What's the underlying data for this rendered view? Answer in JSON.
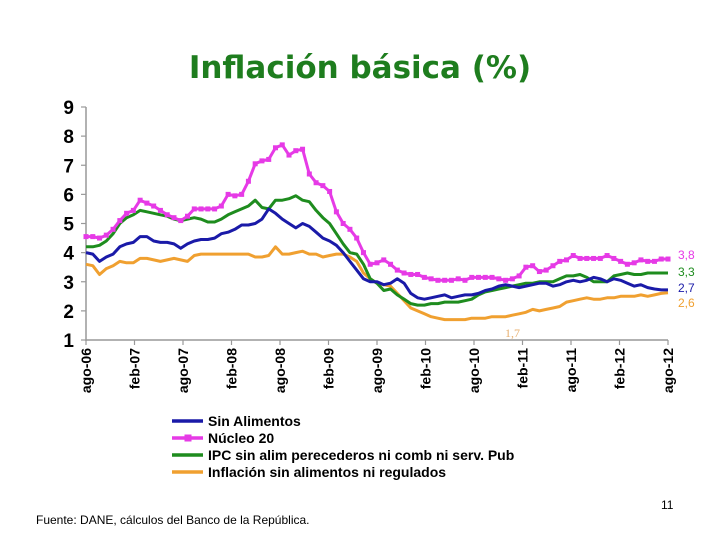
{
  "slide": {
    "title": "Inflación básica (%)",
    "source": "Fuente: DANE, cálculos del Banco de la República.",
    "page_number": "11"
  },
  "chart_data": {
    "type": "line",
    "ylim": [
      1,
      9
    ],
    "yticks": [
      1,
      2,
      3,
      4,
      5,
      6,
      7,
      8,
      9
    ],
    "x_start": "ago-06",
    "x_end": "ago-12",
    "x_tick_labels": [
      "ago-06",
      "feb-07",
      "ago-07",
      "feb-08",
      "ago-08",
      "feb-09",
      "ago-09",
      "feb-10",
      "ago-10",
      "feb-11",
      "ago-11",
      "feb-12",
      "ago-12"
    ],
    "legend_position": "bottom",
    "series": [
      {
        "name": "Sin Alimentos",
        "color": "#1a1aa8",
        "marker": false,
        "end_label": "2,7",
        "values": [
          4.0,
          3.95,
          3.7,
          3.85,
          3.95,
          4.2,
          4.3,
          4.35,
          4.55,
          4.55,
          4.4,
          4.35,
          4.35,
          4.3,
          4.15,
          4.3,
          4.4,
          4.45,
          4.45,
          4.5,
          4.65,
          4.7,
          4.8,
          4.95,
          4.95,
          5.0,
          5.15,
          5.5,
          5.35,
          5.15,
          5.0,
          4.85,
          5.0,
          4.9,
          4.7,
          4.5,
          4.4,
          4.25,
          4.0,
          3.7,
          3.4,
          3.1,
          3.0,
          3.0,
          2.9,
          2.95,
          3.1,
          2.95,
          2.6,
          2.45,
          2.4,
          2.45,
          2.5,
          2.55,
          2.45,
          2.5,
          2.55,
          2.55,
          2.6,
          2.7,
          2.75,
          2.85,
          2.9,
          2.85,
          2.8,
          2.85,
          2.9,
          2.95,
          2.95,
          2.85,
          2.9,
          3.0,
          3.05,
          3.0,
          3.05,
          3.15,
          3.1,
          3.0,
          3.1,
          3.05,
          2.95,
          2.85,
          2.9,
          2.8,
          2.75,
          2.72,
          2.72
        ]
      },
      {
        "name": "Núcleo 20",
        "color": "#e63ae6",
        "marker": true,
        "end_label": "3,8",
        "values": [
          4.55,
          4.55,
          4.5,
          4.6,
          4.8,
          5.1,
          5.35,
          5.45,
          5.8,
          5.7,
          5.6,
          5.45,
          5.3,
          5.2,
          5.1,
          5.25,
          5.5,
          5.5,
          5.5,
          5.5,
          5.6,
          6.0,
          5.95,
          6.0,
          6.45,
          7.05,
          7.15,
          7.2,
          7.6,
          7.7,
          7.35,
          7.5,
          7.55,
          6.7,
          6.4,
          6.3,
          6.1,
          5.4,
          5.0,
          4.8,
          4.5,
          4.0,
          3.6,
          3.65,
          3.75,
          3.6,
          3.4,
          3.3,
          3.25,
          3.25,
          3.15,
          3.1,
          3.05,
          3.05,
          3.05,
          3.1,
          3.05,
          3.15,
          3.15,
          3.15,
          3.15,
          3.1,
          3.05,
          3.1,
          3.2,
          3.5,
          3.55,
          3.35,
          3.4,
          3.55,
          3.7,
          3.75,
          3.9,
          3.8,
          3.8,
          3.8,
          3.8,
          3.9,
          3.8,
          3.7,
          3.6,
          3.65,
          3.75,
          3.7,
          3.7,
          3.78,
          3.78
        ]
      },
      {
        "name": "IPC sin alim perecederos ni comb ni serv. Pub",
        "color": "#1e8c1e",
        "marker": false,
        "end_label": "3,3",
        "values": [
          4.2,
          4.2,
          4.25,
          4.4,
          4.65,
          5.0,
          5.2,
          5.3,
          5.45,
          5.4,
          5.35,
          5.3,
          5.25,
          5.15,
          5.1,
          5.15,
          5.2,
          5.15,
          5.05,
          5.05,
          5.15,
          5.3,
          5.4,
          5.5,
          5.6,
          5.8,
          5.55,
          5.5,
          5.8,
          5.8,
          5.85,
          5.95,
          5.8,
          5.75,
          5.45,
          5.2,
          5.0,
          4.65,
          4.3,
          4.0,
          3.95,
          3.6,
          3.1,
          2.95,
          2.7,
          2.75,
          2.55,
          2.4,
          2.25,
          2.2,
          2.2,
          2.25,
          2.25,
          2.3,
          2.3,
          2.3,
          2.35,
          2.4,
          2.55,
          2.65,
          2.7,
          2.75,
          2.8,
          2.85,
          2.9,
          2.95,
          2.95,
          3.0,
          3.0,
          3.0,
          3.1,
          3.2,
          3.2,
          3.25,
          3.15,
          3.0,
          3.0,
          3.0,
          3.2,
          3.25,
          3.3,
          3.25,
          3.25,
          3.3,
          3.3,
          3.3,
          3.3
        ]
      },
      {
        "name": "Inflación sin alimentos ni regulados",
        "color": "#f0a030",
        "marker": false,
        "end_label": "2,6",
        "values": [
          3.6,
          3.55,
          3.25,
          3.45,
          3.55,
          3.7,
          3.65,
          3.65,
          3.8,
          3.8,
          3.75,
          3.7,
          3.75,
          3.8,
          3.75,
          3.7,
          3.9,
          3.95,
          3.95,
          3.95,
          3.95,
          3.95,
          3.95,
          3.95,
          3.95,
          3.85,
          3.85,
          3.9,
          4.2,
          3.95,
          3.95,
          4.0,
          4.05,
          3.95,
          3.95,
          3.85,
          3.9,
          3.95,
          3.95,
          3.85,
          3.7,
          3.3,
          3.1,
          2.95,
          2.9,
          2.85,
          2.6,
          2.35,
          2.1,
          2.0,
          1.9,
          1.8,
          1.75,
          1.7,
          1.7,
          1.7,
          1.7,
          1.75,
          1.75,
          1.75,
          1.8,
          1.8,
          1.8,
          1.85,
          1.9,
          1.95,
          2.05,
          2.0,
          2.05,
          2.1,
          2.15,
          2.3,
          2.35,
          2.4,
          2.45,
          2.4,
          2.4,
          2.45,
          2.45,
          2.5,
          2.5,
          2.5,
          2.55,
          2.5,
          2.55,
          2.6,
          2.62
        ]
      }
    ],
    "annotations": [
      {
        "text": "1,7",
        "color": "#e8b070"
      }
    ]
  }
}
